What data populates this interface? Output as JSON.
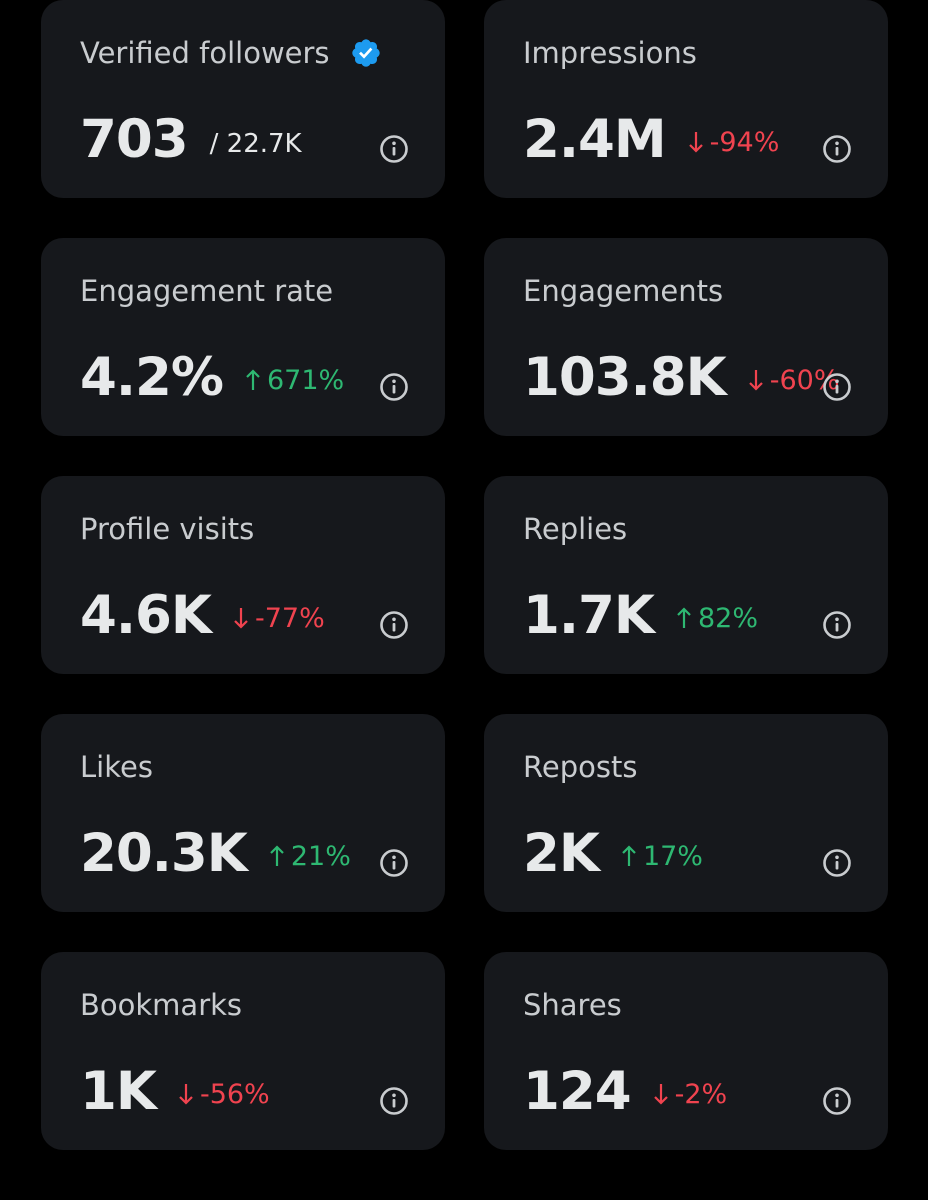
{
  "colors": {
    "background": "#000000",
    "card": "#16181c",
    "up": "#2eb872",
    "down": "#f0434f",
    "verified": "#1d9bf0"
  },
  "cards": [
    {
      "label": "Verified followers",
      "value": "703",
      "suffix": "/ 22.7K",
      "delta": "",
      "direction": "",
      "badge": "verified-badge-icon"
    },
    {
      "label": "Impressions",
      "value": "2.4M",
      "delta": "-94%",
      "direction": "down"
    },
    {
      "label": "Engagement rate",
      "value": "4.2%",
      "delta": "671%",
      "direction": "up"
    },
    {
      "label": "Engagements",
      "value": "103.8K",
      "delta": "-60%",
      "direction": "down"
    },
    {
      "label": "Profile visits",
      "value": "4.6K",
      "delta": "-77%",
      "direction": "down"
    },
    {
      "label": "Replies",
      "value": "1.7K",
      "delta": "82%",
      "direction": "up"
    },
    {
      "label": "Likes",
      "value": "20.3K",
      "delta": "21%",
      "direction": "up"
    },
    {
      "label": "Reposts",
      "value": "2K",
      "delta": "17%",
      "direction": "up"
    },
    {
      "label": "Bookmarks",
      "value": "1K",
      "delta": "-56%",
      "direction": "down"
    },
    {
      "label": "Shares",
      "value": "124",
      "delta": "-2%",
      "direction": "down"
    }
  ]
}
